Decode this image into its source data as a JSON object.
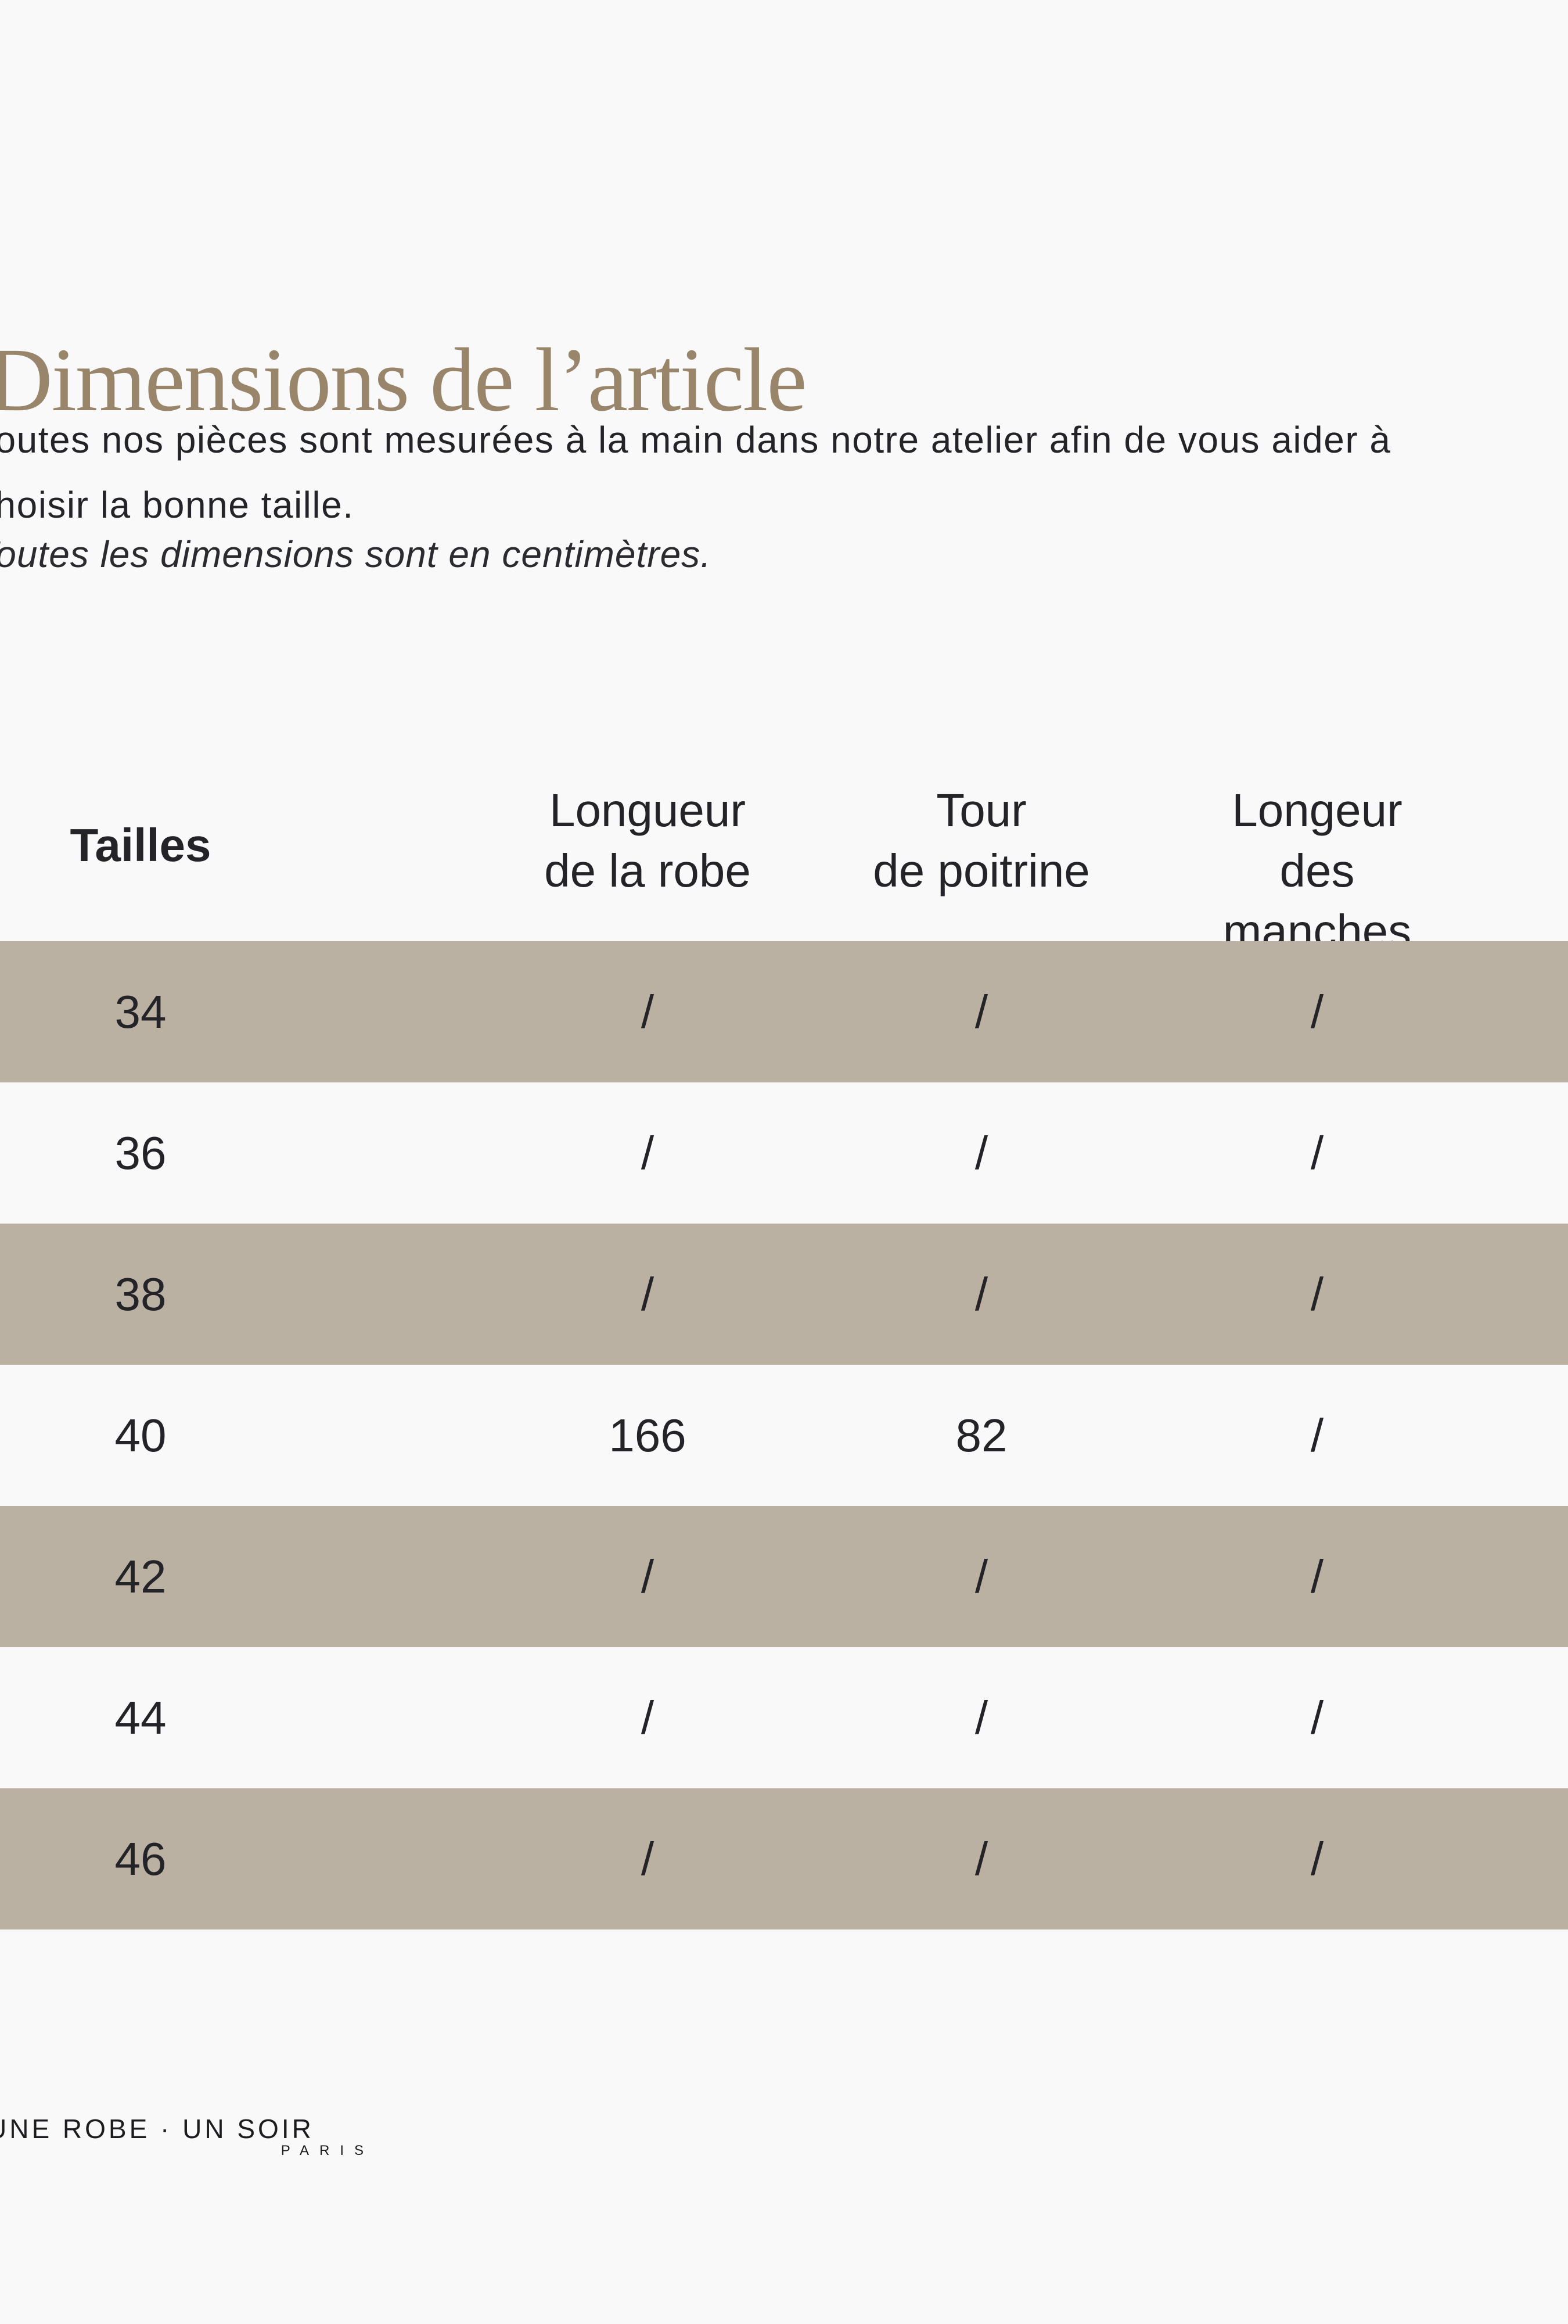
{
  "page": {
    "background": "#f9f9fa",
    "title": {
      "text": "Dimensions de l’article",
      "color": "#98856a"
    },
    "description": {
      "line1": "Toutes nos pièces sont mesurées à la main dans notre atelier afin de vous aider à",
      "line2": "choisir la bonne taille."
    },
    "note": "Toutes les dimensions sont en centimètres."
  },
  "size_table": {
    "stripe_color": "#bab1a2",
    "columns": [
      {
        "id": "tailles",
        "label": "Tailles",
        "two_line": false
      },
      {
        "id": "longueur_robe",
        "label": "Longueur\nde la robe",
        "two_line": true
      },
      {
        "id": "tour_poitrine",
        "label": "Tour\nde poitrine",
        "two_line": true
      },
      {
        "id": "longeur_manches",
        "label": "Longeur\ndes manches",
        "two_line": true
      }
    ],
    "rows": [
      {
        "cells": [
          "34",
          "/",
          "/",
          "/"
        ]
      },
      {
        "cells": [
          "36",
          "/",
          "/",
          "/"
        ]
      },
      {
        "cells": [
          "38",
          "/",
          "/",
          "/"
        ]
      },
      {
        "cells": [
          "40",
          "166",
          "82",
          "/"
        ]
      },
      {
        "cells": [
          "42",
          "/",
          "/",
          "/"
        ]
      },
      {
        "cells": [
          "44",
          "/",
          "/",
          "/"
        ]
      },
      {
        "cells": [
          "46",
          "/",
          "/",
          "/"
        ]
      }
    ]
  },
  "footer": {
    "brand": "UNE ROBE · UN SOIR",
    "brand_sub": "PARIS"
  }
}
